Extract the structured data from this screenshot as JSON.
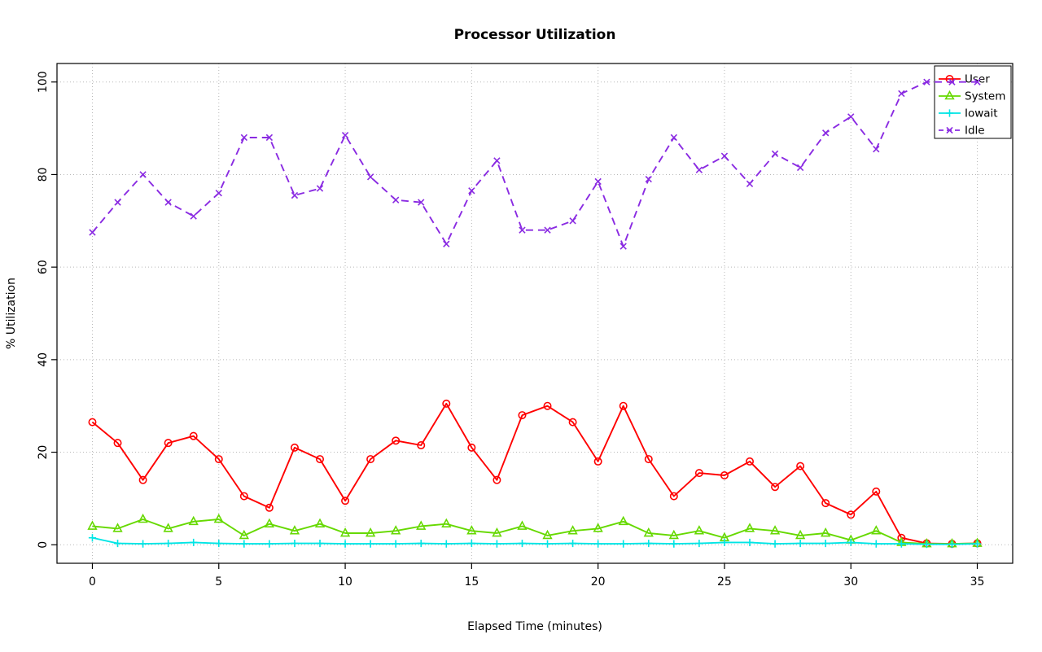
{
  "chart_data": {
    "type": "line",
    "title": "Processor Utilization",
    "xlabel": "Elapsed Time (minutes)",
    "ylabel": "% Utilization",
    "xlim": [
      0,
      35
    ],
    "ylim": [
      0,
      100
    ],
    "x_ticks": [
      0,
      5,
      10,
      15,
      20,
      25,
      30,
      35
    ],
    "y_ticks": [
      0,
      20,
      40,
      60,
      80,
      100
    ],
    "grid": true,
    "grid_color": "#b8b8b8",
    "legend_position": "top-right",
    "x": [
      0,
      1,
      2,
      3,
      4,
      5,
      6,
      7,
      8,
      9,
      10,
      11,
      12,
      13,
      14,
      15,
      16,
      17,
      18,
      19,
      20,
      21,
      22,
      23,
      24,
      25,
      26,
      27,
      28,
      29,
      30,
      31,
      32,
      33,
      34,
      35
    ],
    "series": [
      {
        "name": "User",
        "color": "#ff0000",
        "marker": "circle",
        "line": "solid",
        "values": [
          26.5,
          22,
          14,
          22,
          23.5,
          18.5,
          10.5,
          8,
          21,
          18.5,
          9.5,
          18.5,
          22.5,
          21.5,
          30.5,
          21,
          14,
          28,
          30,
          26.5,
          18,
          30,
          18.5,
          10.5,
          15.5,
          15,
          18,
          12.5,
          17,
          9,
          6.5,
          11.5,
          1.5,
          0.3,
          0.2,
          0.3
        ]
      },
      {
        "name": "System",
        "color": "#66d900",
        "marker": "triangle",
        "line": "solid",
        "values": [
          4,
          3.5,
          5.5,
          3.5,
          5,
          5.5,
          2,
          4.5,
          3,
          4.5,
          2.5,
          2.5,
          3,
          4,
          4.5,
          3,
          2.5,
          4,
          2,
          3,
          3.5,
          5,
          2.5,
          2,
          3,
          1.5,
          3.5,
          3,
          2,
          2.5,
          1,
          3,
          0.5,
          0.2,
          0.2,
          0.3
        ]
      },
      {
        "name": "Iowait",
        "color": "#00e5e5",
        "marker": "plus",
        "line": "solid",
        "values": [
          1.5,
          0.3,
          0.2,
          0.3,
          0.5,
          0.3,
          0.2,
          0.2,
          0.3,
          0.3,
          0.2,
          0.2,
          0.2,
          0.3,
          0.2,
          0.3,
          0.2,
          0.3,
          0.2,
          0.3,
          0.2,
          0.2,
          0.3,
          0.2,
          0.3,
          0.5,
          0.5,
          0.2,
          0.3,
          0.3,
          0.5,
          0.2,
          0.2,
          0.1,
          0.1,
          0.2
        ]
      },
      {
        "name": "Idle",
        "color": "#8a2be2",
        "marker": "x",
        "line": "dashed",
        "values": [
          67.5,
          74,
          80,
          74,
          71,
          76,
          88,
          88,
          75.5,
          77,
          88.5,
          79.5,
          74.5,
          74,
          65,
          76.5,
          83,
          68,
          68,
          70,
          78.5,
          64.5,
          79,
          88,
          81,
          84,
          78,
          84.5,
          81.5,
          89,
          92.5,
          85.5,
          97.5,
          100,
          100,
          100
        ]
      }
    ]
  }
}
